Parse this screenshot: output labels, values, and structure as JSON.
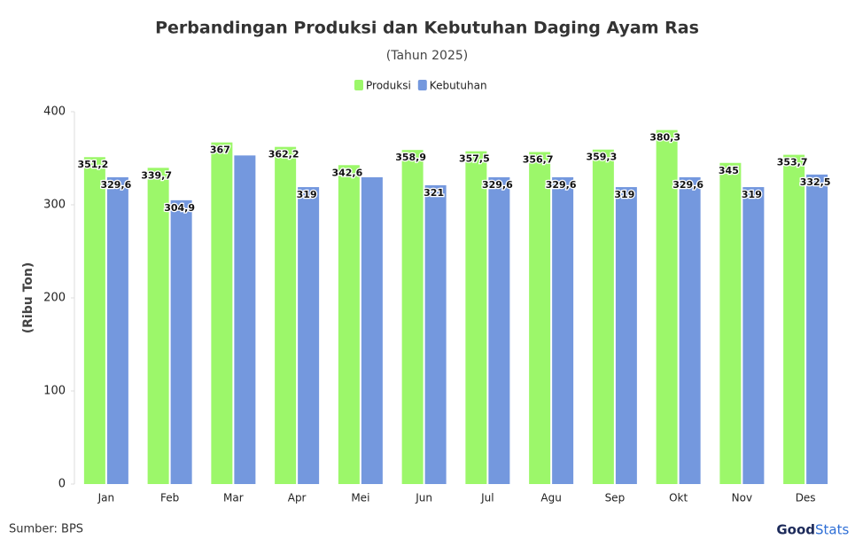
{
  "chart_data": {
    "type": "bar",
    "title": "Perbandingan Produksi dan Kebutuhan Daging Ayam Ras",
    "subtitle": "(Tahun 2025)",
    "y_label": "(Ribu Ton)",
    "source": "Sumber: BPS",
    "logo": {
      "left": "Good",
      "right": "Stats"
    },
    "categories": [
      "Jan",
      "Feb",
      "Mar",
      "Apr",
      "Mei",
      "Jun",
      "Jul",
      "Agu",
      "Sep",
      "Okt",
      "Nov",
      "Des"
    ],
    "series": [
      {
        "name": "Produksi",
        "color": "#9cf76a",
        "values": [
          351.2,
          339.7,
          367,
          362.2,
          342.6,
          358.9,
          357.5,
          356.7,
          359.3,
          380.3,
          345,
          353.7
        ],
        "value_labels": [
          "351,2",
          "339,7",
          "367",
          "362,2",
          "342,6",
          "358,9",
          "357,5",
          "356,7",
          "359,3",
          "380,3",
          "345",
          "353,7"
        ]
      },
      {
        "name": "Kebutuhan",
        "color": "#7498de",
        "values": [
          329.6,
          304.9,
          353,
          319,
          329.6,
          321,
          329.6,
          329.6,
          319,
          329.6,
          319,
          332.5
        ],
        "value_labels": [
          "329,6",
          "304,9",
          null,
          "319",
          null,
          "321",
          "329,6",
          "329,6",
          "319",
          "329,6",
          "319",
          "332,5"
        ]
      }
    ],
    "ylim": [
      0,
      400
    ],
    "yticks": [
      0,
      100,
      200,
      300,
      400
    ],
    "grid": false,
    "legend": "top"
  }
}
